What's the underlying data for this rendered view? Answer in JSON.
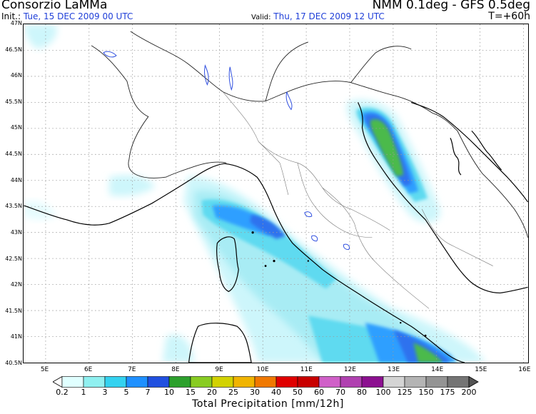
{
  "header": {
    "organization": "Consorzio LaMMa",
    "model": "NMM 0.1deg - GFS 0.5deg",
    "init_label": "Init.:",
    "init_time": "Tue, 15 DEC 2009  00 UTC",
    "valid_label": "Valid:",
    "valid_time": "Thu, 17 DEC 2009  12 UTC",
    "forecast_hour": "T=+60h"
  },
  "map": {
    "lat_labels": [
      "47N",
      "46.5N",
      "46N",
      "45.5N",
      "45N",
      "44.5N",
      "44N",
      "43.5N",
      "43N",
      "42.5N",
      "42N",
      "41.5N",
      "41N",
      "40.5N"
    ],
    "lon_labels": [
      "5E",
      "6E",
      "7E",
      "8E",
      "9E",
      "10E",
      "11E",
      "12E",
      "13E",
      "14E",
      "15E",
      "16E"
    ],
    "lon_range": [
      4.5,
      16.1
    ],
    "lat_range": [
      40.5,
      47.0
    ]
  },
  "colorbar": {
    "title": "Total Precipitation [mm/12h]",
    "labels": [
      "0.2",
      "1",
      "3",
      "5",
      "7",
      "10",
      "15",
      "20",
      "25",
      "30",
      "40",
      "50",
      "60",
      "70",
      "80",
      "100",
      "125",
      "150",
      "175",
      "200"
    ],
    "colors": [
      "#e0ffff",
      "#8ff0f0",
      "#33d2f0",
      "#1e90ff",
      "#2050e0",
      "#2ca02c",
      "#88cc22",
      "#d2d200",
      "#f0b400",
      "#f07800",
      "#e00000",
      "#c80000",
      "#d060c8",
      "#b040b0",
      "#8c1090",
      "#d4d4d4",
      "#b4b4b4",
      "#949494",
      "#747474",
      "#545454"
    ]
  },
  "colors": {
    "accent_blue": "#1f3fd8",
    "border": "#000000"
  }
}
